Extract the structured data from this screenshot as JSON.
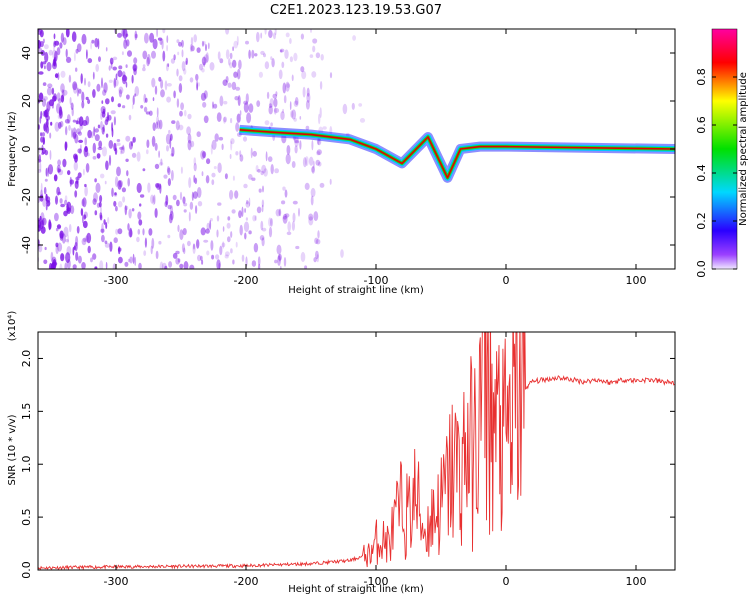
{
  "title": "C2E1.2023.123.19.53.G07",
  "colors": {
    "line": "#e83030",
    "track": "#e00000",
    "track_edge": "#1fcf1f",
    "scatter": "#7a10e6"
  },
  "colorbar": {
    "label": "Normalized spectral amplitude",
    "range": [
      0,
      1
    ],
    "ticks": [
      "0.0",
      "0.2",
      "0.4",
      "0.6",
      "0.8"
    ],
    "tick_values": [
      0.0,
      0.2,
      0.4,
      0.6,
      0.8
    ],
    "colormap": "rainbow (violet → blue → cyan → green → yellow → red → magenta)"
  },
  "chart_data": [
    {
      "type": "heatmap",
      "xlabel": "Height of straight line (km)",
      "ylabel": "Frequency (Hz)",
      "xlim": [
        -360,
        130
      ],
      "ylim": [
        -50,
        50
      ],
      "x_ticks": [
        "-300",
        "-200",
        "-100",
        "0",
        "100"
      ],
      "x_tick_values": [
        -300,
        -200,
        -100,
        0,
        100
      ],
      "y_ticks": [
        "-40",
        "-20",
        "0",
        "20",
        "40"
      ],
      "y_tick_values": [
        -40,
        -20,
        0,
        20,
        40
      ],
      "track": {
        "x": [
          -205,
          -180,
          -150,
          -120,
          -100,
          -80,
          -60,
          -45,
          -35,
          -20,
          0,
          130
        ],
        "y": [
          8,
          7,
          6,
          4,
          0,
          -6,
          5,
          -12,
          0,
          1,
          1,
          0
        ]
      },
      "noise_region_x": [
        -360,
        -140
      ]
    },
    {
      "type": "line",
      "xlabel": "Height of straight line (km)",
      "ylabel": "SNR (10 * v/v)",
      "multiplier": "(x10⁴)",
      "xlim": [
        -360,
        130
      ],
      "ylim": [
        0,
        2.25
      ],
      "x_ticks": [
        "-300",
        "-200",
        "-100",
        "0",
        "100"
      ],
      "x_tick_values": [
        -300,
        -200,
        -100,
        0,
        100
      ],
      "y_ticks": [
        "0.0",
        "0.5",
        "1.0",
        "1.5",
        "2.0"
      ],
      "y_tick_values": [
        0.0,
        0.5,
        1.0,
        1.5,
        2.0
      ],
      "series": [
        {
          "x": [
            -360,
            -300,
            -200,
            -150,
            -120,
            -105,
            -98,
            -90,
            -85,
            -80,
            -75,
            -70,
            -62,
            -55,
            -50,
            -45,
            -40,
            -35,
            -30,
            -25,
            -20,
            -17,
            -15,
            -12,
            -10,
            -8,
            -5,
            -2,
            0,
            5,
            10,
            15,
            20,
            30,
            40,
            50,
            60,
            70,
            80,
            90,
            100,
            110,
            120,
            130
          ],
          "y": [
            0.02,
            0.03,
            0.04,
            0.06,
            0.09,
            0.15,
            0.3,
            0.25,
            0.45,
            0.6,
            0.5,
            0.7,
            0.35,
            0.55,
            0.6,
            0.8,
            1.0,
            0.9,
            1.2,
            1.05,
            1.4,
            2.2,
            1.9,
            1.5,
            1.5,
            1.2,
            1.4,
            1.1,
            1.3,
            1.4,
            1.6,
            1.72,
            1.78,
            1.8,
            1.82,
            1.8,
            1.78,
            1.8,
            1.77,
            1.8,
            1.79,
            1.8,
            1.78,
            1.77
          ]
        }
      ]
    }
  ]
}
